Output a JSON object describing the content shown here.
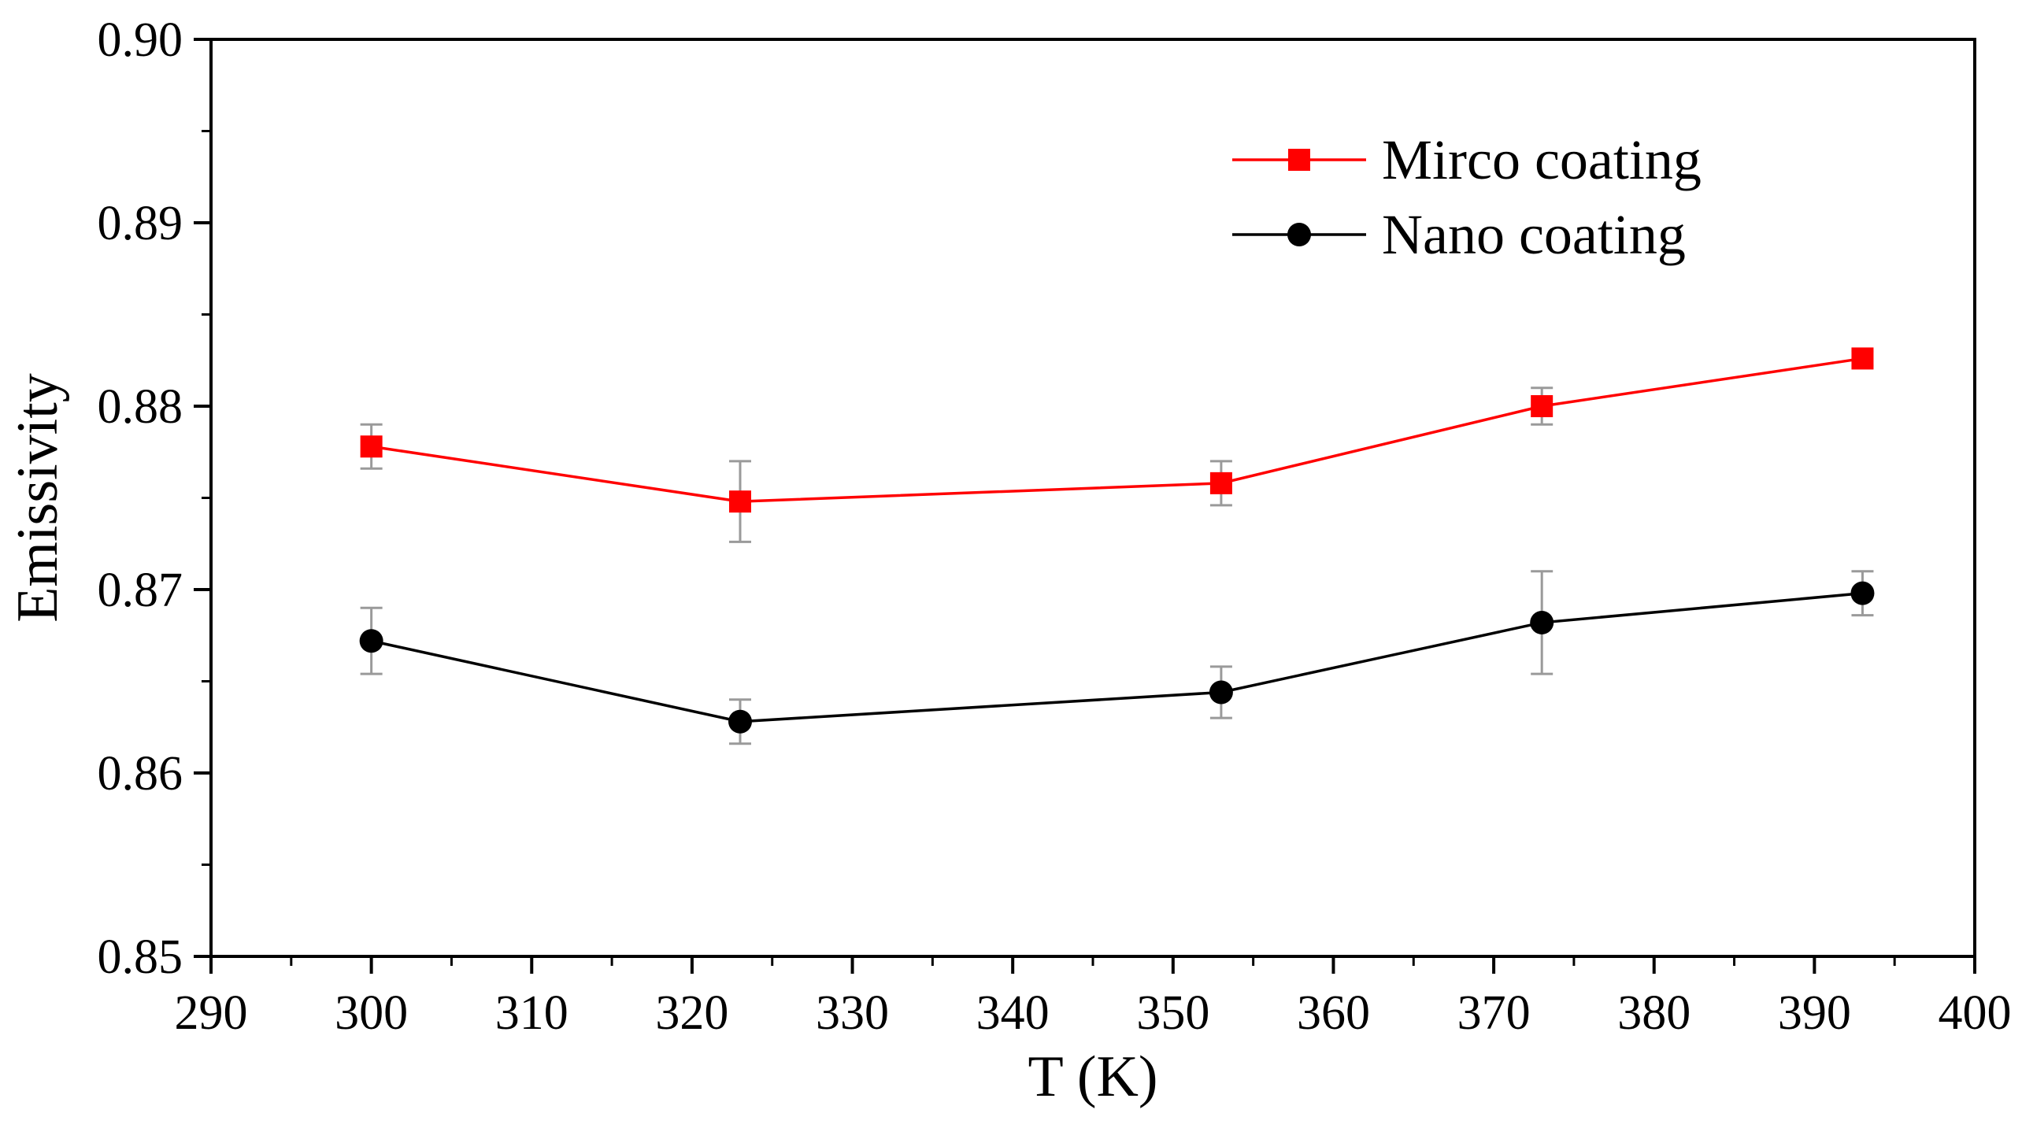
{
  "chart_data": {
    "type": "line",
    "title": "",
    "xlabel": "T (K)",
    "ylabel": "Emissivity",
    "xlim": [
      290,
      400
    ],
    "ylim": [
      0.85,
      0.9
    ],
    "xticks": [
      290,
      300,
      310,
      320,
      330,
      340,
      350,
      360,
      370,
      380,
      390,
      400
    ],
    "xtick_labels": [
      "290",
      "300",
      "310",
      "320",
      "330",
      "340",
      "350",
      "360",
      "370",
      "380",
      "390",
      "400"
    ],
    "yticks": [
      0.85,
      0.86,
      0.87,
      0.88,
      0.89,
      0.9
    ],
    "ytick_labels": [
      "0.85",
      "0.86",
      "0.87",
      "0.88",
      "0.89",
      "0.90"
    ],
    "grid": false,
    "legend_position": "top-right",
    "series": [
      {
        "name": "Mirco coating",
        "color": "#ff0000",
        "marker": "square",
        "x": [
          300,
          323,
          353,
          373,
          393
        ],
        "y": [
          0.8778,
          0.8748,
          0.8758,
          0.88,
          0.8826
        ],
        "error": [
          0.0012,
          0.0022,
          0.0012,
          0.001,
          0.0004
        ]
      },
      {
        "name": "Nano coating",
        "color": "#000000",
        "marker": "circle",
        "x": [
          300,
          323,
          353,
          373,
          393
        ],
        "y": [
          0.8672,
          0.8628,
          0.8644,
          0.8682,
          0.8698
        ],
        "error": [
          0.0018,
          0.0012,
          0.0014,
          0.0028,
          0.0012
        ]
      }
    ]
  }
}
